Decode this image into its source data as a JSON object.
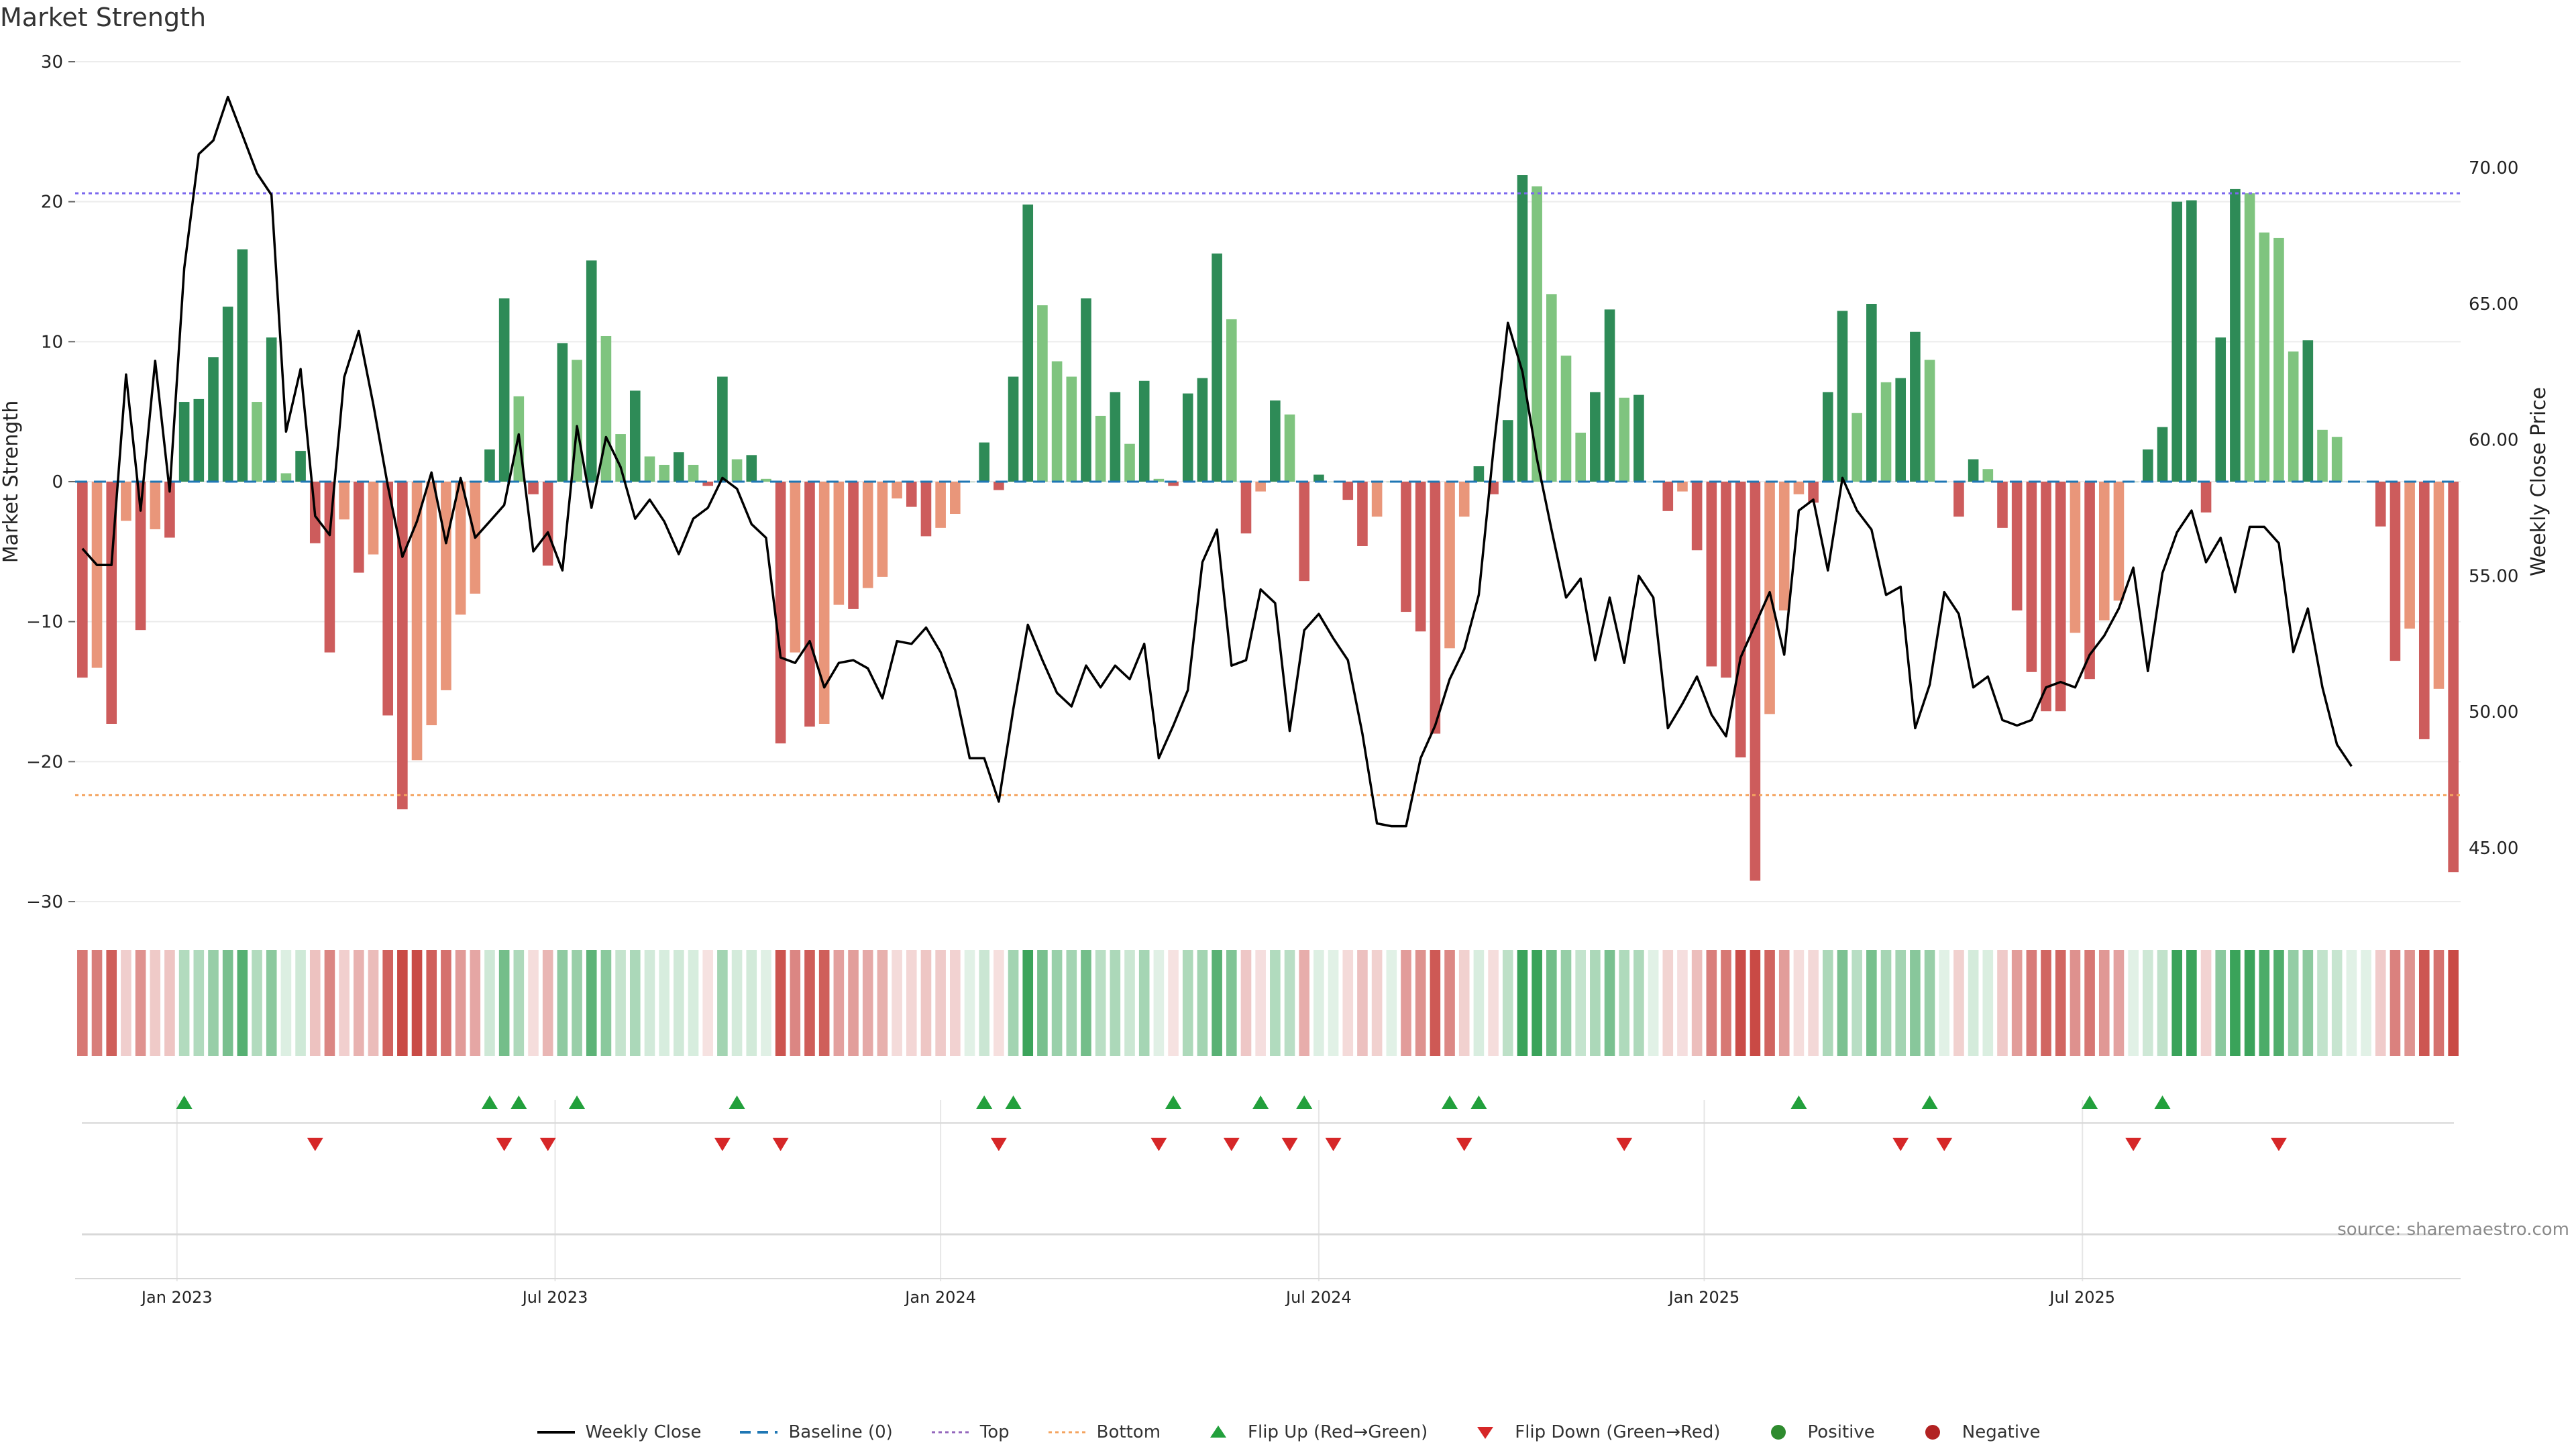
{
  "header": {
    "title": "Market Strength"
  },
  "source": "source: sharemaestro.com",
  "colors": {
    "strong_green": "#2e8b57",
    "light_green": "#7fc47f",
    "strong_red": "#cd5c5c",
    "light_red": "#e9967a",
    "price_line": "#000000",
    "top_line": "#7b68ee",
    "bottom_line": "#f4a460",
    "baseline": "#1f77b4",
    "flip_up": "#22a03c",
    "flip_down": "#d62728"
  },
  "legend": [
    {
      "label": "Weekly Close",
      "kind": "line",
      "color": "#000000"
    },
    {
      "label": "Baseline (0)",
      "kind": "dash",
      "color": "#1f77b4"
    },
    {
      "label": "Top",
      "kind": "dot",
      "color": "#9467bd"
    },
    {
      "label": "Bottom",
      "kind": "dot",
      "color": "#f4a460"
    },
    {
      "label": "Flip Up (Red→Green)",
      "kind": "tri-up",
      "color": "#22a03c"
    },
    {
      "label": "Flip Down (Green→Red)",
      "kind": "tri-down",
      "color": "#d62728"
    },
    {
      "label": "Positive",
      "kind": "circle",
      "color": "#2e8b2e"
    },
    {
      "label": "Negative",
      "kind": "circle",
      "color": "#b22222"
    }
  ],
  "chart_data": {
    "type": "bar",
    "title": "Market Strength",
    "ylabel": "Market Strength",
    "y2label": "Weekly Close Price",
    "ylim": [
      -30,
      30
    ],
    "y2lim": [
      43,
      74.5
    ],
    "yticks": [
      "30",
      "20",
      "10",
      "0",
      "−10",
      "−20",
      "−30"
    ],
    "y2ticks": [
      "70.00",
      "65.00",
      "60.00",
      "55.00",
      "50.00",
      "45.00"
    ],
    "y2tick_values": [
      70,
      65,
      60,
      55,
      50,
      45
    ],
    "top_threshold": 20.6,
    "bottom_threshold": -22.4,
    "x_tick_labels": [
      "Jan 2023",
      "Jul 2023",
      "Jan 2024",
      "Jul 2024",
      "Jan 2025",
      "Jul 2025"
    ],
    "x_tick_weeks": [
      7,
      33,
      59.5,
      85.5,
      112,
      138
    ],
    "series": [
      {
        "name": "Market Strength",
        "values": [
          -14,
          -13.3,
          -17.3,
          -2.8,
          -10.6,
          -3.4,
          -4,
          5.7,
          5.9,
          8.9,
          12.5,
          16.6,
          5.7,
          10.3,
          0.6,
          2.2,
          -4.4,
          -12.2,
          -2.7,
          -6.5,
          -5.2,
          -16.7,
          -23.4,
          -19.9,
          -17.4,
          -14.9,
          -9.5,
          -8,
          2.3,
          13.1,
          6.1,
          -0.9,
          -6,
          9.9,
          8.7,
          15.8,
          10.4,
          3.4,
          6.5,
          1.8,
          1.2,
          2.1,
          1.2,
          -0.3,
          7.5,
          1.6,
          1.9,
          0.2,
          -18.7,
          -12.2,
          -17.5,
          -17.3,
          -8.8,
          -9.1,
          -7.6,
          -6.8,
          -1.2,
          -1.8,
          -3.9,
          -3.3,
          -2.3,
          0,
          2.8,
          -0.6,
          7.5,
          19.8,
          12.6,
          8.6,
          7.5,
          13.1,
          4.7,
          6.4,
          2.7,
          7.2,
          0.2,
          -0.3,
          6.3,
          7.4,
          16.3,
          11.6,
          -3.7,
          -0.7,
          5.8,
          4.8,
          -7.1,
          0.5,
          0,
          -1.3,
          -4.6,
          -2.5,
          0,
          -9.3,
          -10.7,
          -18,
          -11.9,
          -2.5,
          1.1,
          -0.9,
          4.4,
          21.9,
          21.1,
          13.4,
          9,
          3.5,
          6.4,
          12.3,
          6,
          6.2,
          0,
          -2.1,
          -0.7,
          -4.9,
          -13.2,
          -14,
          -19.7,
          -28.5,
          -16.6,
          -9.2,
          -0.9,
          -1.5,
          6.4,
          12.2,
          4.9,
          12.7,
          7.1,
          7.4,
          10.7,
          8.7,
          0,
          -2.5,
          1.6,
          0.9,
          -3.3,
          -9.2,
          -13.6,
          -16.4,
          -16.4,
          -10.8,
          -14.1,
          -9.9,
          -8.5,
          0,
          2.3,
          3.9,
          20,
          20.1,
          -2.2,
          10.3,
          20.9,
          20.6,
          17.8,
          17.4,
          9.3,
          10.1,
          3.7,
          3.2,
          0,
          0,
          -3.2,
          -12.8,
          -10.5,
          -18.4,
          -14.8,
          -27.9
        ]
      },
      {
        "name": "Weekly Close",
        "axis": "right",
        "values": [
          56,
          55.4,
          55.4,
          62.4,
          57.4,
          62.9,
          58.1,
          66.3,
          70.5,
          71,
          72.6,
          71.2,
          69.8,
          69,
          60.3,
          62.6,
          57.2,
          56.5,
          62.3,
          64,
          61.3,
          58.3,
          55.7,
          57,
          58.8,
          56.2,
          58.6,
          56.4,
          57,
          57.6,
          60.2,
          55.9,
          56.6,
          55.2,
          60.5,
          57.5,
          60.1,
          59,
          57.1,
          57.8,
          57,
          55.8,
          57.1,
          57.5,
          58.6,
          58.2,
          56.9,
          56.4,
          52,
          51.8,
          52.6,
          50.9,
          51.8,
          51.9,
          51.6,
          50.5,
          52.6,
          52.5,
          53.1,
          52.2,
          50.8,
          48.3,
          48.3,
          46.7,
          50.1,
          53.2,
          51.9,
          50.7,
          50.2,
          51.7,
          50.9,
          51.7,
          51.2,
          52.5,
          48.3,
          49.5,
          50.8,
          55.5,
          56.7,
          51.7,
          51.9,
          54.5,
          54,
          49.3,
          53,
          53.6,
          52.7,
          51.9,
          49.2,
          45.9,
          45.8,
          45.8,
          48.3,
          49.5,
          51.2,
          52.3,
          54.3,
          59.6,
          64.3,
          62.5,
          59.3,
          56.7,
          54.2,
          54.9,
          51.9,
          54.2,
          51.8,
          55,
          54.2,
          49.4,
          50.3,
          51.3,
          49.9,
          49.1,
          52,
          53.2,
          54.4,
          52.1,
          57.4,
          57.8,
          55.2,
          58.6,
          57.4,
          56.7,
          54.3,
          54.6,
          49.4,
          51,
          54.4,
          53.6,
          50.9,
          51.3,
          49.7,
          49.5,
          49.7,
          50.9,
          51.1,
          50.9,
          52.1,
          52.8,
          53.8,
          55.3,
          51.5,
          55.1,
          56.6,
          57.4,
          55.5,
          56.4,
          54.4,
          56.8,
          56.8,
          56.2,
          52.2,
          53.8,
          50.9,
          48.8,
          48
        ]
      }
    ],
    "flip_up_weeks": [
      7,
      28,
      30,
      34,
      45,
      62,
      64,
      75,
      81,
      84,
      94,
      96,
      118,
      127,
      138,
      143
    ],
    "flip_down_weeks": [
      16,
      29,
      32,
      44,
      48,
      63,
      74,
      79,
      83,
      86,
      95,
      106,
      125,
      128,
      141,
      151
    ]
  }
}
